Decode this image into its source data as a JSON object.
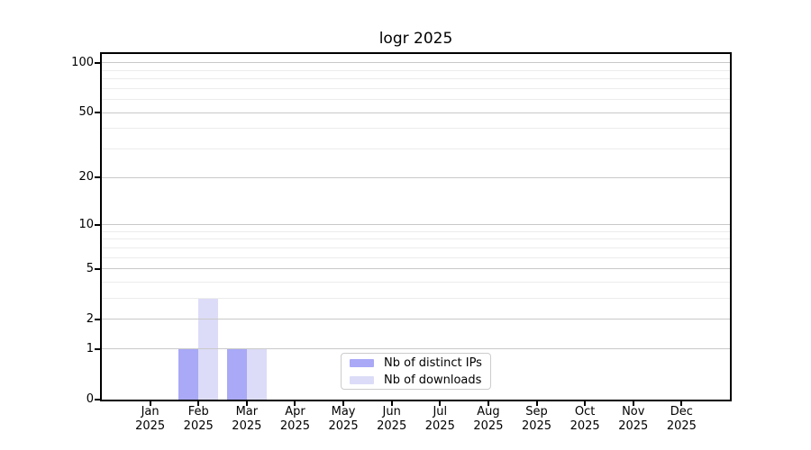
{
  "chart_data": {
    "type": "bar",
    "title": "logr 2025",
    "categories": [
      "Jan 2025",
      "Feb 2025",
      "Mar 2025",
      "Apr 2025",
      "May 2025",
      "Jun 2025",
      "Jul 2025",
      "Aug 2025",
      "Sep 2025",
      "Oct 2025",
      "Nov 2025",
      "Dec 2025"
    ],
    "x_tick_month": [
      "Jan",
      "Feb",
      "Mar",
      "Apr",
      "May",
      "Jun",
      "Jul",
      "Aug",
      "Sep",
      "Oct",
      "Nov",
      "Dec"
    ],
    "x_tick_year": "2025",
    "series": [
      {
        "name": "Nb of distinct IPs",
        "color": "#a9a9f7",
        "values": [
          0,
          1,
          1,
          0,
          0,
          0,
          0,
          0,
          0,
          0,
          0,
          0
        ]
      },
      {
        "name": "Nb of downloads",
        "color": "#dcdcf8",
        "values": [
          0,
          3,
          1,
          0,
          0,
          0,
          0,
          0,
          0,
          0,
          0,
          0
        ]
      }
    ],
    "xlabel": "",
    "ylabel": "",
    "yscale": "log1p",
    "ylim": [
      0,
      113
    ],
    "y_major_ticks": [
      0,
      1,
      2,
      5,
      10,
      20,
      50,
      100
    ],
    "y_minor_ticks": [
      3,
      4,
      6,
      7,
      8,
      9,
      30,
      40,
      60,
      70,
      80,
      90
    ],
    "grid": true,
    "legend_position": "lower center"
  },
  "colors": {
    "axis": "#000000",
    "grid_major": "#c9c9c9",
    "grid_minor": "#ececec",
    "legend_border": "#cccccc",
    "background": "#ffffff"
  }
}
